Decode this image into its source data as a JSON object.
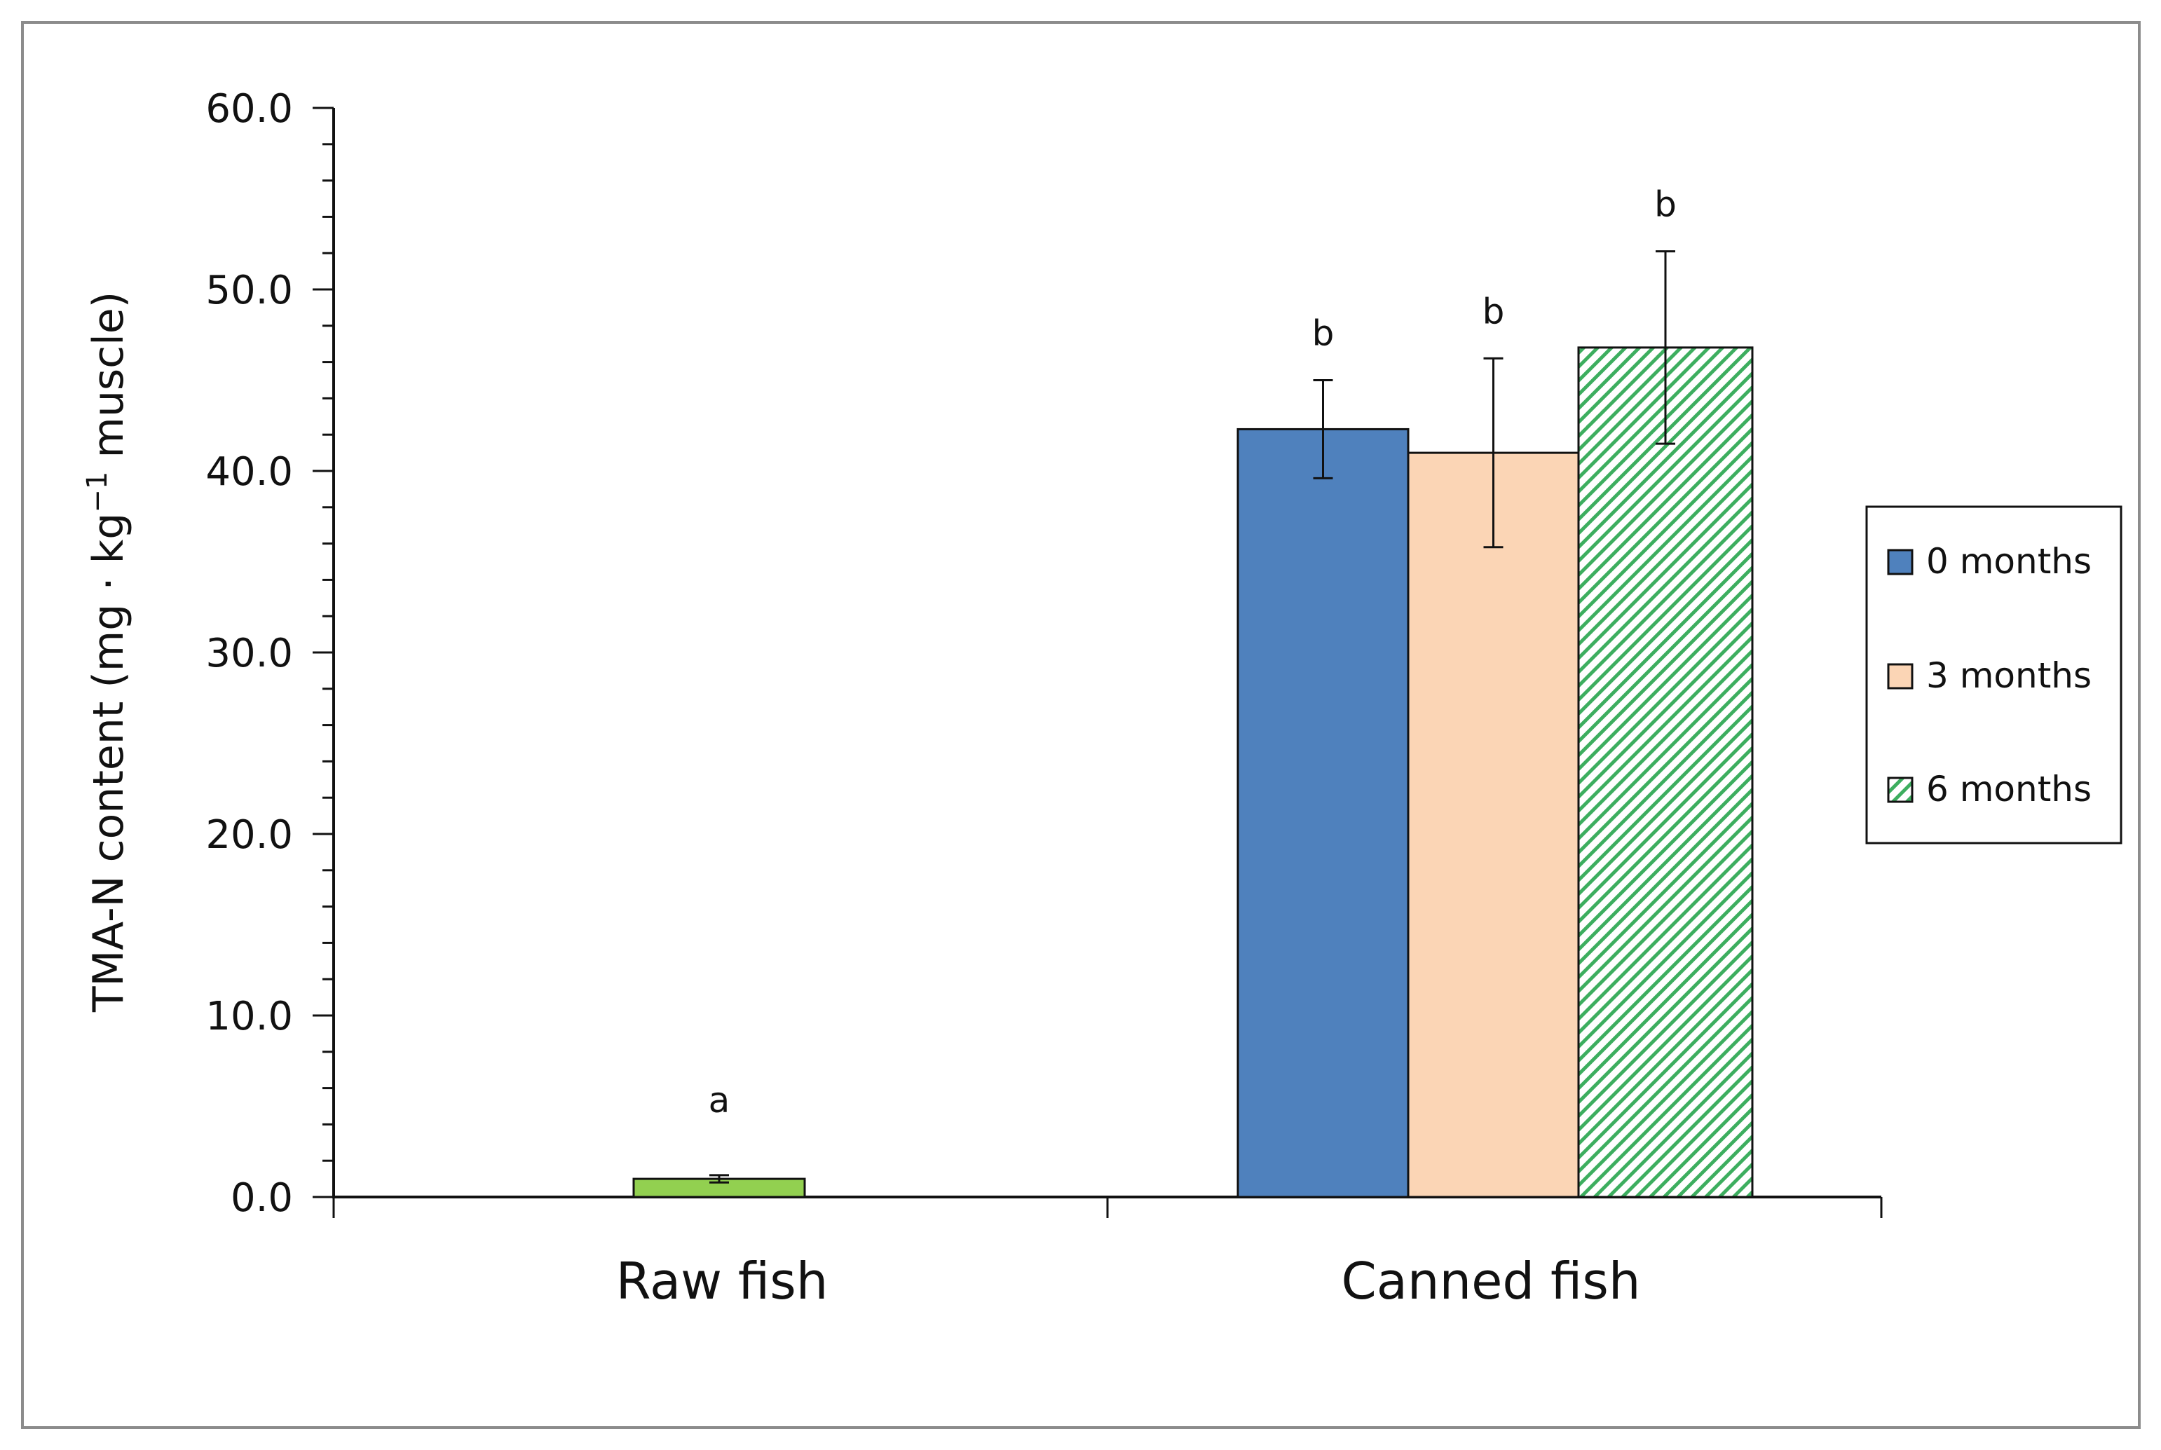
{
  "chart_data": {
    "type": "bar",
    "categories": [
      "Raw fish",
      "Canned fish"
    ],
    "ylabel": "TMA-N content  (mg · kg",
    "ylabel_sup": "−1",
    "ylabel_tail": "  muscle)",
    "ylim": [
      0,
      60
    ],
    "yticks": [
      "0.0",
      "10.0",
      "20.0",
      "30.0",
      "40.0",
      "50.0",
      "60.0"
    ],
    "ytick_values": [
      0,
      10,
      20,
      30,
      40,
      50,
      60
    ],
    "grid": false,
    "legend_position": "right",
    "colors": {
      "raw": "#92D050",
      "0_months": "#4F81BD",
      "3_months": "#FBD5B5",
      "6_months_stripe": "#3DAE5F"
    },
    "series": [
      {
        "name": "Raw fish",
        "category": "Raw fish",
        "value": 1.0,
        "error": 0.2,
        "letter": "a"
      },
      {
        "name": "0 months",
        "category": "Canned fish",
        "value": 42.3,
        "error": 2.7,
        "letter": "b"
      },
      {
        "name": "3 months",
        "category": "Canned fish",
        "value": 41.0,
        "error": 5.2,
        "letter": "b"
      },
      {
        "name": "6 months",
        "category": "Canned fish",
        "value": 46.8,
        "error": 5.3,
        "letter": "b"
      }
    ],
    "legend": [
      "0 months",
      "3 months",
      "6 months"
    ]
  }
}
